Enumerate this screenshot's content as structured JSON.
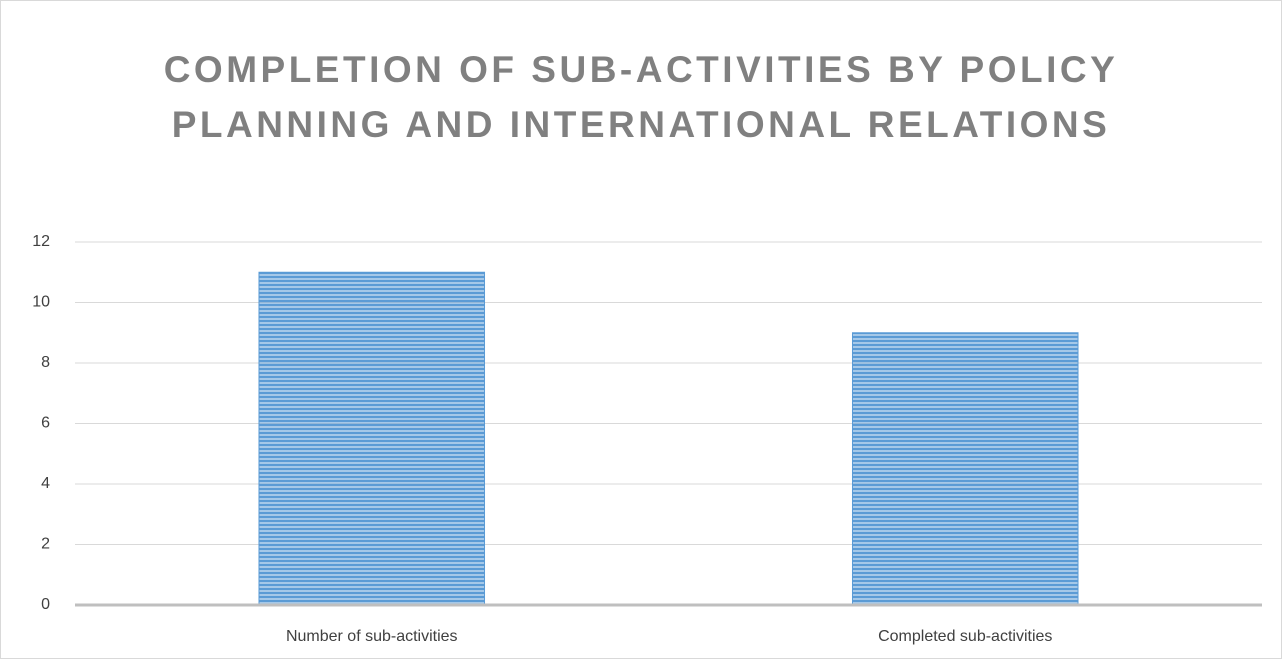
{
  "chart_data": {
    "type": "bar",
    "title": "COMPLETION OF SUB-ACTIVITIES BY POLICY PLANNING AND INTERNATIONAL RELATIONS",
    "categories": [
      "Number of sub-activities",
      "Completed sub-activities"
    ],
    "values": [
      11,
      9
    ],
    "color": "#5b9bd5",
    "ylim": [
      0,
      12
    ],
    "yticks": [
      0,
      2,
      4,
      6,
      8,
      10,
      12
    ],
    "grid": true
  }
}
